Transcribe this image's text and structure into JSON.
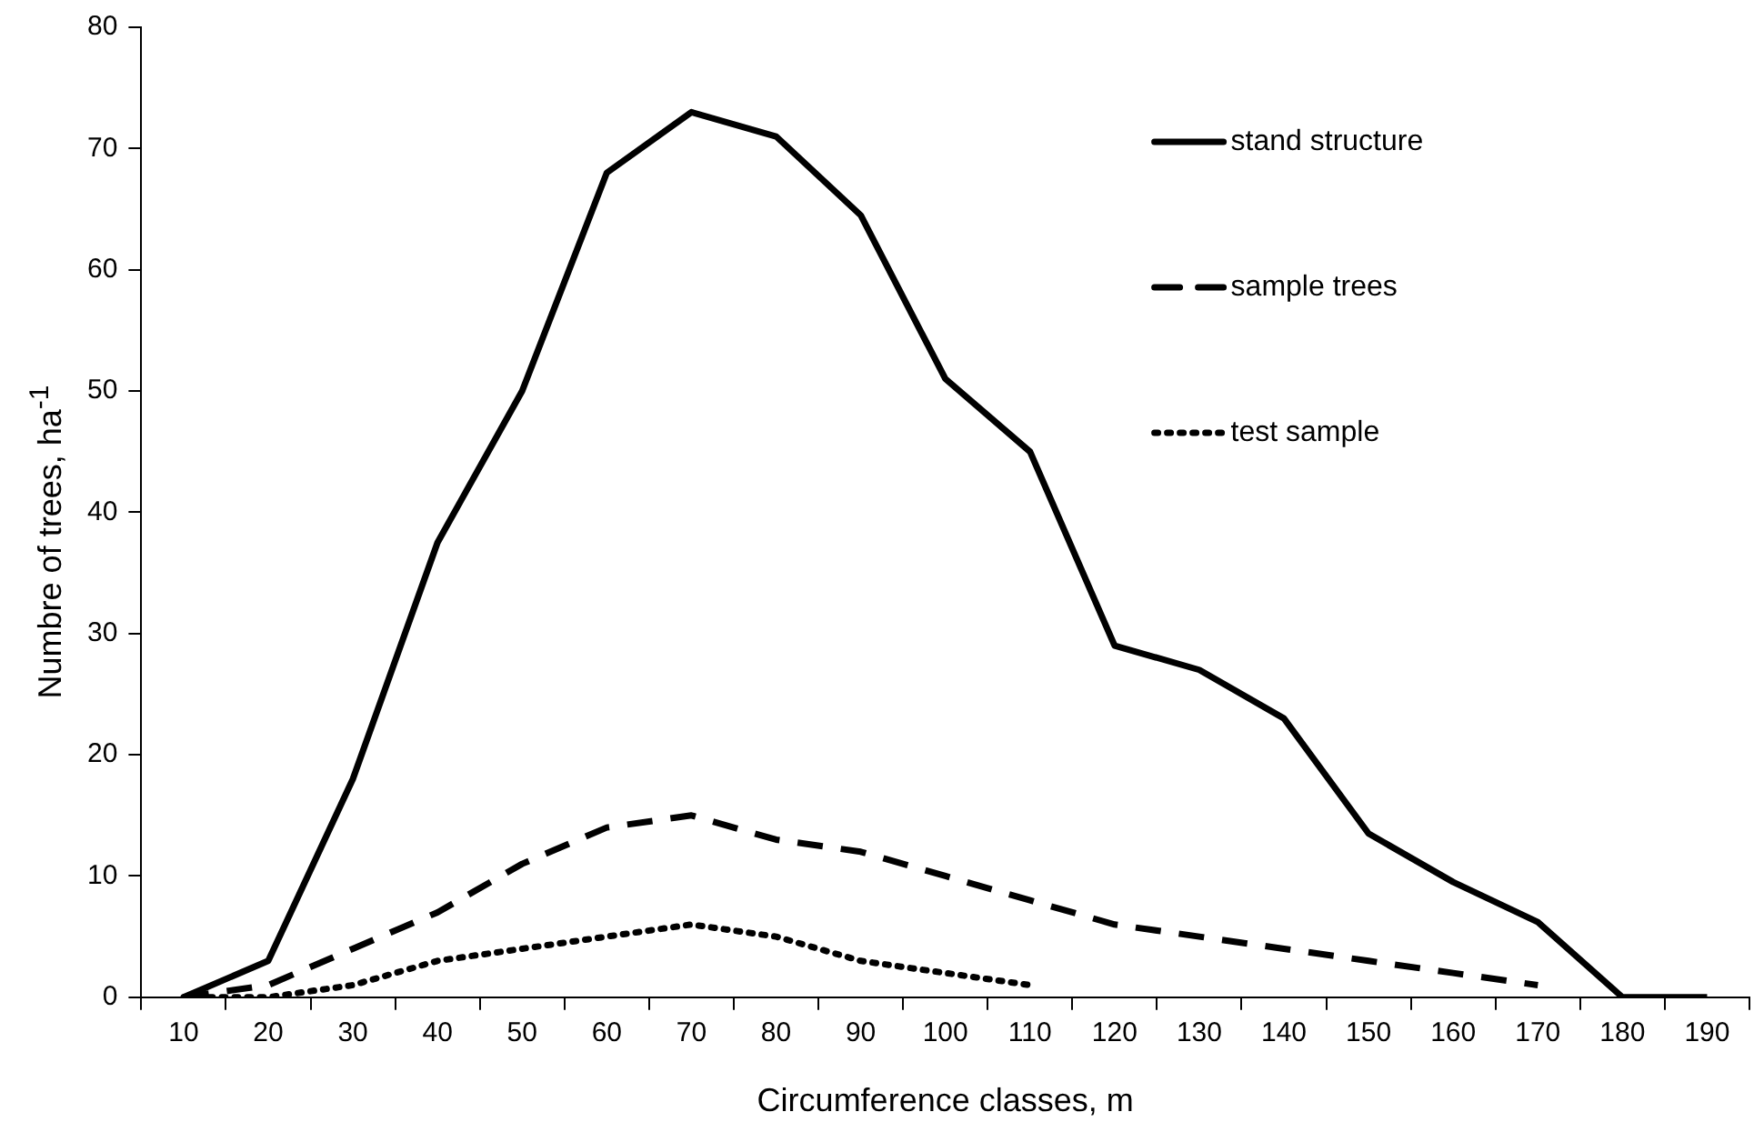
{
  "chart_data": {
    "type": "line",
    "xlabel": "Circumference classes, m",
    "ylabel": "Numbre of trees, ha$^{-1}$",
    "categories": [
      "10",
      "20",
      "30",
      "40",
      "50",
      "60",
      "70",
      "80",
      "90",
      "100",
      "110",
      "120",
      "130",
      "140",
      "150",
      "160",
      "170",
      "180",
      "190"
    ],
    "series": [
      {
        "name": "stand structure",
        "color": "#000000",
        "line_style": "solid",
        "values": [
          0,
          3,
          18,
          37.5,
          50,
          68,
          73,
          71,
          64.5,
          51,
          45,
          29,
          27,
          23,
          13.5,
          9.5,
          6.2,
          0,
          0
        ]
      },
      {
        "name": "sample trees",
        "color": "#000000",
        "line_style": "dashed",
        "values": [
          0,
          1,
          4,
          7,
          11,
          14,
          15,
          13,
          12,
          10,
          8,
          6,
          5,
          4,
          3,
          2,
          1,
          null,
          null
        ]
      },
      {
        "name": "test sample",
        "color": "#000000",
        "line_style": "dotted",
        "values": [
          0,
          0,
          1,
          3,
          4,
          5,
          6,
          5,
          3,
          2,
          1,
          null,
          null,
          null,
          null,
          null,
          null,
          null,
          null
        ]
      }
    ],
    "ylim": [
      0,
      80
    ],
    "yticks": [
      0,
      10,
      20,
      30,
      40,
      50,
      60,
      70,
      80
    ],
    "grid": false,
    "legend": "top right",
    "marker": "none"
  }
}
